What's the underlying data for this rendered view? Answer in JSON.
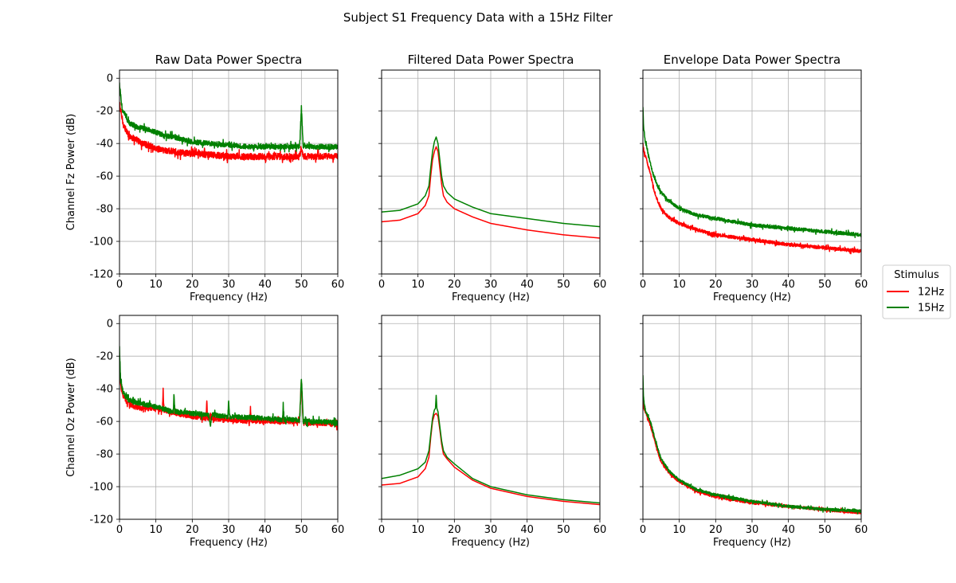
{
  "figure": {
    "title": "Subject S1 Frequency Data with a 15Hz Filter"
  },
  "legend": {
    "title": "Stimulus",
    "entries": [
      {
        "label": "12Hz",
        "color": "#ff0000"
      },
      {
        "label": "15Hz",
        "color": "#008000"
      }
    ],
    "placement": "right-center"
  },
  "chart_data": [
    {
      "type": "line",
      "row": 0,
      "col": 0,
      "title": "Raw Data Power Spectra",
      "xlabel": "Frequency (Hz)",
      "ylabel": "Channel Fz Power (dB)",
      "xlim": [
        0,
        60
      ],
      "ylim": [
        -120,
        5
      ],
      "xticks": [
        0,
        10,
        20,
        30,
        40,
        50,
        60
      ],
      "yticks": [
        0,
        -20,
        -40,
        -60,
        -80,
        -100,
        -120
      ],
      "grid": true,
      "show_yticklabels": true,
      "show_xticklabels": true,
      "series": [
        {
          "name": "12Hz",
          "color": "#ff0000",
          "x": [
            0,
            0.5,
            1,
            2,
            3,
            4,
            5,
            6,
            8,
            10,
            12,
            15,
            18,
            20,
            25,
            30,
            35,
            40,
            45,
            49.5,
            50,
            50.5,
            55,
            60
          ],
          "y": [
            -15,
            -22,
            -28,
            -33,
            -36,
            -37,
            -38,
            -40,
            -41,
            -43,
            -44,
            -45,
            -46,
            -46,
            -47,
            -48,
            -48,
            -48,
            -48,
            -48,
            -42,
            -48,
            -48,
            -48
          ],
          "noise": 2.0
        },
        {
          "name": "15Hz",
          "color": "#008000",
          "x": [
            0,
            0.3,
            0.8,
            1.5,
            2,
            3,
            4,
            5,
            7,
            10,
            12,
            15,
            18,
            20,
            25,
            30,
            35,
            40,
            45,
            49.5,
            50,
            50.5,
            55,
            60
          ],
          "y": [
            -3,
            -10,
            -20,
            -22,
            -25,
            -28,
            -29,
            -30,
            -31,
            -33,
            -35,
            -36,
            -38,
            -39,
            -40,
            -41,
            -42,
            -42,
            -42,
            -42,
            -18,
            -42,
            -42,
            -42
          ],
          "noise": 1.5
        }
      ]
    },
    {
      "type": "line",
      "row": 0,
      "col": 1,
      "title": "Filtered Data Power Spectra",
      "xlabel": "Frequency (Hz)",
      "ylabel": "",
      "xlim": [
        0,
        60
      ],
      "ylim": [
        -120,
        5
      ],
      "xticks": [
        0,
        10,
        20,
        30,
        40,
        50,
        60
      ],
      "yticks": [
        0,
        -20,
        -40,
        -60,
        -80,
        -100,
        -120
      ],
      "grid": true,
      "show_yticklabels": false,
      "show_xticklabels": true,
      "series": [
        {
          "name": "12Hz",
          "color": "#ff0000",
          "x": [
            0,
            5,
            10,
            12,
            13,
            13.5,
            14,
            14.5,
            15,
            15.5,
            16,
            16.5,
            17,
            18,
            20,
            25,
            30,
            40,
            50,
            60
          ],
          "y": [
            -88,
            -87,
            -83,
            -78,
            -72,
            -60,
            -50,
            -45,
            -42,
            -45,
            -55,
            -65,
            -72,
            -76,
            -80,
            -85,
            -89,
            -93,
            -96,
            -98
          ],
          "noise": 0
        },
        {
          "name": "15Hz",
          "color": "#008000",
          "x": [
            0,
            5,
            10,
            12,
            13,
            13.5,
            14,
            14.5,
            15,
            15.5,
            16,
            16.5,
            17,
            18,
            20,
            25,
            30,
            40,
            50,
            60
          ],
          "y": [
            -82,
            -81,
            -77,
            -72,
            -66,
            -55,
            -45,
            -39,
            -36,
            -40,
            -50,
            -60,
            -66,
            -70,
            -74,
            -79,
            -83,
            -86,
            -89,
            -91
          ],
          "noise": 0
        }
      ]
    },
    {
      "type": "line",
      "row": 0,
      "col": 2,
      "title": "Envelope Data Power Spectra",
      "xlabel": "Frequency (Hz)",
      "ylabel": "",
      "xlim": [
        0,
        60
      ],
      "ylim": [
        -120,
        5
      ],
      "xticks": [
        0,
        10,
        20,
        30,
        40,
        50,
        60
      ],
      "yticks": [
        0,
        -20,
        -40,
        -60,
        -80,
        -100,
        -120
      ],
      "grid": true,
      "show_yticklabels": false,
      "show_xticklabels": true,
      "series": [
        {
          "name": "12Hz",
          "color": "#ff0000",
          "x": [
            0,
            0.3,
            1,
            2,
            3,
            4,
            5,
            7,
            10,
            15,
            20,
            30,
            40,
            50,
            60
          ],
          "y": [
            -40,
            -45,
            -50,
            -58,
            -68,
            -75,
            -80,
            -85,
            -89,
            -93,
            -96,
            -99,
            -102,
            -104,
            -106
          ],
          "noise": 1.0
        },
        {
          "name": "15Hz",
          "color": "#008000",
          "x": [
            0,
            0.2,
            0.6,
            1,
            2,
            3,
            4,
            5,
            7,
            10,
            15,
            20,
            30,
            40,
            50,
            60
          ],
          "y": [
            -18,
            -30,
            -38,
            -42,
            -52,
            -60,
            -66,
            -70,
            -75,
            -80,
            -84,
            -86,
            -90,
            -92,
            -94,
            -96
          ],
          "noise": 1.0
        }
      ]
    },
    {
      "type": "line",
      "row": 1,
      "col": 0,
      "title": "",
      "xlabel": "Frequency (Hz)",
      "ylabel": "Channel Oz Power (dB)",
      "xlim": [
        0,
        60
      ],
      "ylim": [
        -120,
        5
      ],
      "xticks": [
        0,
        10,
        20,
        30,
        40,
        50,
        60
      ],
      "yticks": [
        0,
        -20,
        -40,
        -60,
        -80,
        -100,
        -120
      ],
      "grid": true,
      "show_yticklabels": true,
      "show_xticklabels": true,
      "series": [
        {
          "name": "12Hz",
          "color": "#ff0000",
          "x": [
            0,
            0.3,
            1,
            2,
            4,
            6,
            8,
            10,
            11.8,
            12,
            12.2,
            15,
            20,
            23.8,
            24,
            24.2,
            30,
            35.8,
            36,
            36.2,
            40,
            45,
            49.5,
            50,
            50.5,
            55,
            60
          ],
          "y": [
            -30,
            -38,
            -44,
            -48,
            -51,
            -52,
            -52,
            -52,
            -53,
            -41,
            -53,
            -55,
            -57,
            -58,
            -47,
            -58,
            -59,
            -60,
            -51,
            -60,
            -60,
            -60,
            -60,
            -35,
            -61,
            -61,
            -62
          ],
          "noise": 1.5
        },
        {
          "name": "15Hz",
          "color": "#008000",
          "x": [
            0,
            0.3,
            1,
            2,
            4,
            6,
            8,
            10,
            14.8,
            15,
            15.2,
            20,
            24.5,
            25,
            25.5,
            29.8,
            30,
            30.2,
            40,
            44.8,
            45,
            45.2,
            49.5,
            50,
            50.5,
            55,
            60
          ],
          "y": [
            -15,
            -35,
            -42,
            -46,
            -48,
            -49,
            -50,
            -51,
            -54,
            -44,
            -54,
            -55,
            -56,
            -62,
            -56,
            -57,
            -46,
            -57,
            -58,
            -59,
            -51,
            -59,
            -59,
            -33,
            -60,
            -60,
            -61
          ],
          "noise": 1.5
        }
      ]
    },
    {
      "type": "line",
      "row": 1,
      "col": 1,
      "title": "",
      "xlabel": "Frequency (Hz)",
      "ylabel": "",
      "xlim": [
        0,
        60
      ],
      "ylim": [
        -120,
        5
      ],
      "xticks": [
        0,
        10,
        20,
        30,
        40,
        50,
        60
      ],
      "yticks": [
        0,
        -20,
        -40,
        -60,
        -80,
        -100,
        -120
      ],
      "grid": true,
      "show_yticklabels": false,
      "show_xticklabels": true,
      "series": [
        {
          "name": "12Hz",
          "color": "#ff0000",
          "x": [
            0,
            5,
            10,
            12,
            13,
            13.5,
            14,
            14.5,
            15,
            15.5,
            16,
            16.5,
            17,
            18,
            20,
            25,
            30,
            40,
            50,
            60
          ],
          "y": [
            -99,
            -98,
            -94,
            -89,
            -82,
            -70,
            -60,
            -56,
            -55,
            -57,
            -65,
            -74,
            -80,
            -83,
            -88,
            -96,
            -101,
            -106,
            -109,
            -111
          ],
          "noise": 0
        },
        {
          "name": "15Hz",
          "color": "#008000",
          "x": [
            0,
            5,
            10,
            12,
            13,
            13.5,
            14,
            14.5,
            14.8,
            15,
            15.2,
            15.5,
            16,
            16.5,
            17,
            18,
            20,
            25,
            30,
            40,
            50,
            60
          ],
          "y": [
            -95,
            -93,
            -89,
            -85,
            -78,
            -68,
            -58,
            -53,
            -52,
            -44,
            -52,
            -54,
            -63,
            -72,
            -78,
            -82,
            -86,
            -95,
            -100,
            -105,
            -108,
            -110
          ],
          "noise": 0
        }
      ]
    },
    {
      "type": "line",
      "row": 1,
      "col": 2,
      "title": "",
      "xlabel": "Frequency (Hz)",
      "ylabel": "",
      "xlim": [
        0,
        60
      ],
      "ylim": [
        -120,
        5
      ],
      "xticks": [
        0,
        10,
        20,
        30,
        40,
        50,
        60
      ],
      "yticks": [
        0,
        -20,
        -40,
        -60,
        -80,
        -100,
        -120
      ],
      "grid": true,
      "show_yticklabels": false,
      "show_xticklabels": true,
      "series": [
        {
          "name": "12Hz",
          "color": "#ff0000",
          "x": [
            0,
            0.3,
            1,
            2,
            3,
            4,
            5,
            7,
            10,
            15,
            20,
            30,
            40,
            50,
            60
          ],
          "y": [
            -45,
            -52,
            -56,
            -62,
            -70,
            -78,
            -85,
            -91,
            -97,
            -103,
            -106,
            -110,
            -112,
            -114,
            -116
          ],
          "noise": 0.8
        },
        {
          "name": "15Hz",
          "color": "#008000",
          "x": [
            0,
            0.15,
            0.5,
            1,
            2,
            3,
            4,
            5,
            7,
            10,
            15,
            20,
            30,
            40,
            50,
            60
          ],
          "y": [
            -32,
            -45,
            -52,
            -55,
            -60,
            -68,
            -76,
            -83,
            -90,
            -96,
            -102,
            -105,
            -109,
            -112,
            -114,
            -115
          ],
          "noise": 0.8
        }
      ]
    }
  ]
}
